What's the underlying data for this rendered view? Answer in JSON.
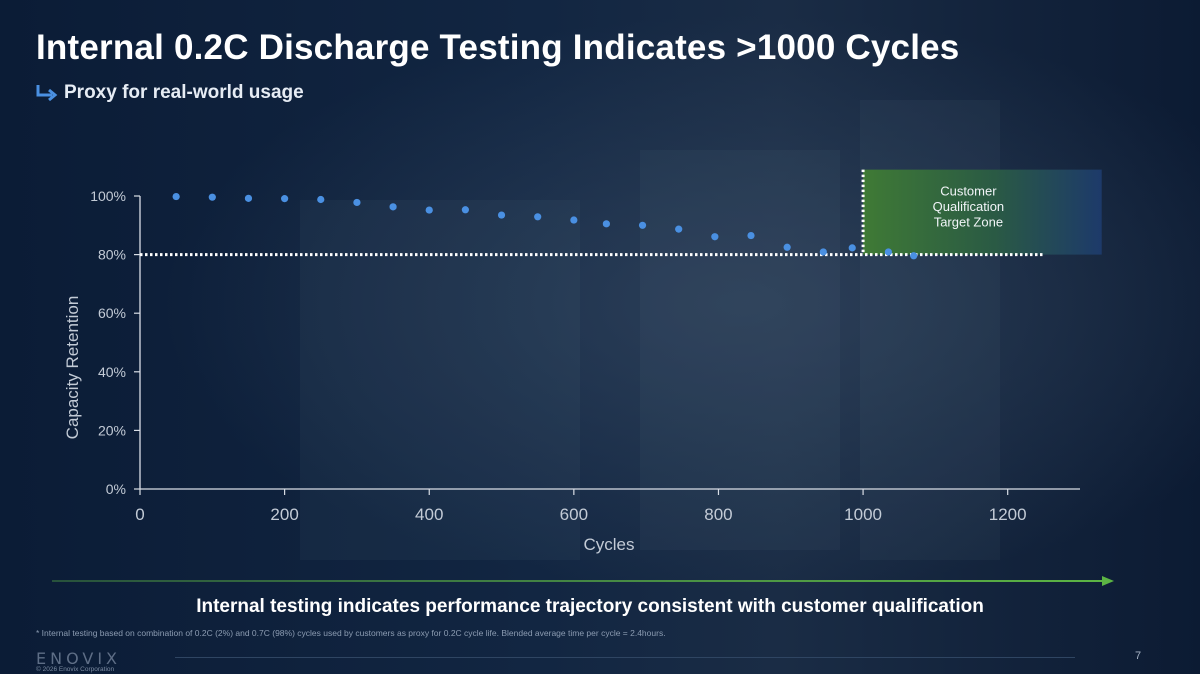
{
  "slide": {
    "title": "Internal 0.2C  Discharge Testing Indicates >1000 Cycles",
    "subtitle": "Proxy for real-world usage",
    "conclusion": "Internal testing indicates performance trajectory consistent with customer qualification",
    "footnote": "* Internal testing based on combination of 0.2C (2%) and 0.7C (98%) cycles used by customers as proxy for 0.2C cycle life. Blended average time per cycle =  2.4hours.",
    "logo": "ENOVIX",
    "copyright": "© 2026 Enovix Corporation",
    "page_number": "7"
  },
  "colors": {
    "point": "#4a90e2",
    "axis": "#d9dee6",
    "zone_start": "#3f7a35",
    "zone_end": "#1d3a6a",
    "arrow": "#5cb544"
  },
  "icons": {
    "subtitle": "return-arrow-icon"
  },
  "chart_data": {
    "type": "scatter",
    "xlabel": "Cycles",
    "ylabel": "Capacity Retention",
    "xlim": [
      0,
      1300
    ],
    "ylim": [
      0,
      100
    ],
    "xticks": [
      0,
      200,
      400,
      600,
      800,
      1000,
      1200
    ],
    "xtick_labels": [
      "0",
      "200",
      "400",
      "600",
      "800",
      "1000",
      "1200"
    ],
    "yticks": [
      0,
      20,
      40,
      60,
      80,
      100
    ],
    "ytick_labels": [
      "0%",
      "20%",
      "40%",
      "60%",
      "80%",
      "100%"
    ],
    "series": [
      {
        "name": "Capacity Retention",
        "x": [
          50,
          100,
          150,
          200,
          250,
          300,
          350,
          400,
          450,
          500,
          550,
          600,
          645,
          695,
          745,
          795,
          845,
          895,
          945,
          985,
          1035,
          1070
        ],
        "y": [
          99.8,
          99.6,
          99.2,
          99.1,
          98.8,
          97.8,
          96.3,
          95.2,
          95.3,
          93.5,
          92.9,
          91.8,
          90.5,
          90.0,
          88.7,
          86.1,
          86.5,
          82.5,
          80.9,
          82.3,
          80.9,
          79.6
        ]
      }
    ],
    "reference_line": {
      "y": 80,
      "x_range": [
        0,
        1250
      ],
      "style": "dotted"
    },
    "reference_vline": {
      "x": 1000,
      "y_range": [
        80,
        109
      ],
      "style": "dotted"
    },
    "target_zone": {
      "label": "Customer Qualification Target Zone",
      "x_range": [
        1000,
        1330
      ],
      "y_range": [
        80,
        109
      ]
    }
  }
}
